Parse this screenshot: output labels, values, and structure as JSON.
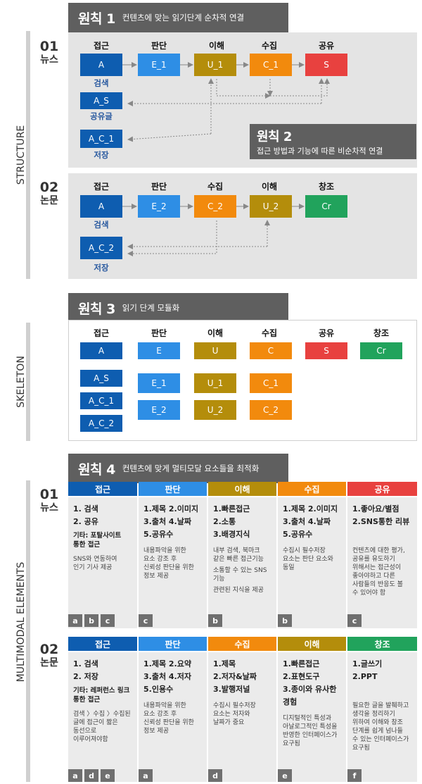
{
  "side_labels": {
    "structure": "STRUCTURE",
    "skeleton": "SKELETON",
    "multimodal": "MULTIMODAL ELEMENTS"
  },
  "principles": {
    "p1": {
      "title": "원칙 1",
      "desc": "컨텐츠에 맞는 읽기단계 순차적 연결"
    },
    "p2": {
      "title": "원칙 2",
      "desc": "접근 방법과 기능에 따른 비순차적 연결"
    },
    "p3": {
      "title": "원칙 3",
      "desc": "읽기 단계 모듈화"
    },
    "p4": {
      "title": "원칙 4",
      "desc": "컨텐츠에 맞게 멀티모달 요소들을 최적화"
    }
  },
  "structure": {
    "news": {
      "num": "01",
      "label": "뉴스",
      "stages": [
        "접근",
        "판단",
        "이해",
        "수집",
        "공유"
      ],
      "boxes": [
        "A",
        "E_1",
        "U_1",
        "C_1",
        "S"
      ],
      "under_a": "검색",
      "extra": [
        {
          "box": "A_S",
          "label": "공유글"
        },
        {
          "box": "A_C_1",
          "label": "저장"
        }
      ]
    },
    "paper": {
      "num": "02",
      "label": "논문",
      "stages": [
        "접근",
        "판단",
        "수집",
        "이해",
        "창조"
      ],
      "boxes": [
        "A",
        "E_2",
        "C_2",
        "U_2",
        "Cr"
      ],
      "under_a": "검색",
      "extra": [
        {
          "box": "A_C_2",
          "label": "저장"
        }
      ]
    }
  },
  "skeleton": {
    "stages": [
      "접근",
      "판단",
      "이해",
      "수집",
      "공유",
      "창조"
    ],
    "row1": [
      "A",
      "E",
      "U",
      "C",
      "S",
      "Cr"
    ],
    "col_a": [
      "A_S",
      "A_C_1",
      "A_C_2"
    ],
    "col_e": [
      "E_1",
      "E_2"
    ],
    "col_u": [
      "U_1",
      "U_2"
    ],
    "col_c": [
      "C_1",
      "C_2"
    ]
  },
  "multimodal": {
    "news": {
      "num": "01",
      "label": "뉴스",
      "cols": [
        {
          "head": "접근",
          "lines": [
            "1. 검색",
            "2. 공유"
          ],
          "bold": [
            "기타: 포탈사이트",
            "통한 접근"
          ],
          "desc": [
            "SNS와 연동하여",
            "인기 기사 제공"
          ],
          "tags": [
            "a",
            "b",
            "c"
          ]
        },
        {
          "head": "판단",
          "lines": [
            "1.제목 2.이미지",
            "3.출처 4.날짜",
            "5.공유수"
          ],
          "bold": [],
          "desc": [
            "내용파악을 위한",
            "요소 강조 후",
            "신뢰성 판단을 위한",
            "정보 제공"
          ],
          "tags": [
            "c"
          ]
        },
        {
          "head": "이해",
          "lines": [
            "1.빠른접근",
            "2.소통",
            "3.배경지식"
          ],
          "bold": [],
          "desc": [
            "내부 검색, 북마크",
            "같은 빠른 접근기능"
          ],
          "desc2": [
            "소통할 수 있는 SNS",
            "기능"
          ],
          "desc3": [
            "관련된 지식을 제공"
          ],
          "tags": [
            "b"
          ]
        },
        {
          "head": "수집",
          "lines": [
            "1.제목 2.이미지",
            "3.출처 4.날짜",
            "5.공유수"
          ],
          "bold": [],
          "desc": [
            "수집시 필수저장",
            "요소는 판단 요소와",
            "동일"
          ],
          "tags": [
            "b"
          ]
        },
        {
          "head": "공유",
          "lines": [
            "1.좋아요/별점",
            "2.SNS통한 리뷰"
          ],
          "bold": [],
          "desc": [
            "컨텐츠에 대한 평가,",
            "공유를 유도하기",
            "위해서는 접근성이",
            "좋아야하고 다른",
            "사람들의 반응도 볼",
            "수 있어야 함"
          ],
          "tags": [
            "c"
          ]
        }
      ]
    },
    "paper": {
      "num": "02",
      "label": "논문",
      "cols": [
        {
          "head": "접근",
          "lines": [
            "1. 검색",
            "2. 저장"
          ],
          "bold": [
            "기타: 레퍼런스 링크",
            "통한 접근"
          ],
          "desc": [
            "검색 〉수집 〉수집된",
            "글에 접근이 짧은",
            "동선으로",
            "이루어져야함"
          ],
          "tags": [
            "a",
            "d",
            "e"
          ]
        },
        {
          "head": "판단",
          "lines": [
            "1.제목 2.요약",
            "3.출처 4.저자",
            "5.인용수"
          ],
          "bold": [],
          "desc": [
            "내용파악을 위한",
            "요소 강조 후",
            "신뢰성 판단을 위한",
            "정보 제공"
          ],
          "tags": [
            "a"
          ]
        },
        {
          "head": "수집",
          "lines": [
            "1.제목",
            "2.저자&날짜",
            "3.발행저널"
          ],
          "bold": [],
          "desc": [
            "수집시 필수저장",
            "요소는 저자와",
            "날짜가 중요"
          ],
          "tags": [
            "d"
          ]
        },
        {
          "head": "이해",
          "lines": [
            "1.빠른접근",
            "2.표현도구",
            "3.종이와 유사한",
            "경험"
          ],
          "bold": [],
          "desc": [
            "디지털적인 특성과",
            "아날로그적인 특성을",
            "반영한 인터페이스가",
            "요구됨"
          ],
          "tags": [
            "e"
          ]
        },
        {
          "head": "창조",
          "lines": [
            "1.글쓰기",
            "2.PPT"
          ],
          "bold": [],
          "desc": [
            "필요한 글을 발췌하고",
            "생각을 정리하기",
            "위하여 이해와 창조",
            "단계를 쉽게 넘나들",
            "수 있는 인터페이스가",
            "요구됨"
          ],
          "tags": [
            "f"
          ]
        }
      ]
    }
  },
  "colors": {
    "blue": "#0e5db0",
    "light_blue": "#2e8ee5",
    "olive": "#b48d0b",
    "orange": "#f28a0d",
    "red": "#e8413f",
    "green": "#21a35c",
    "banner": "#5f5f5f"
  }
}
